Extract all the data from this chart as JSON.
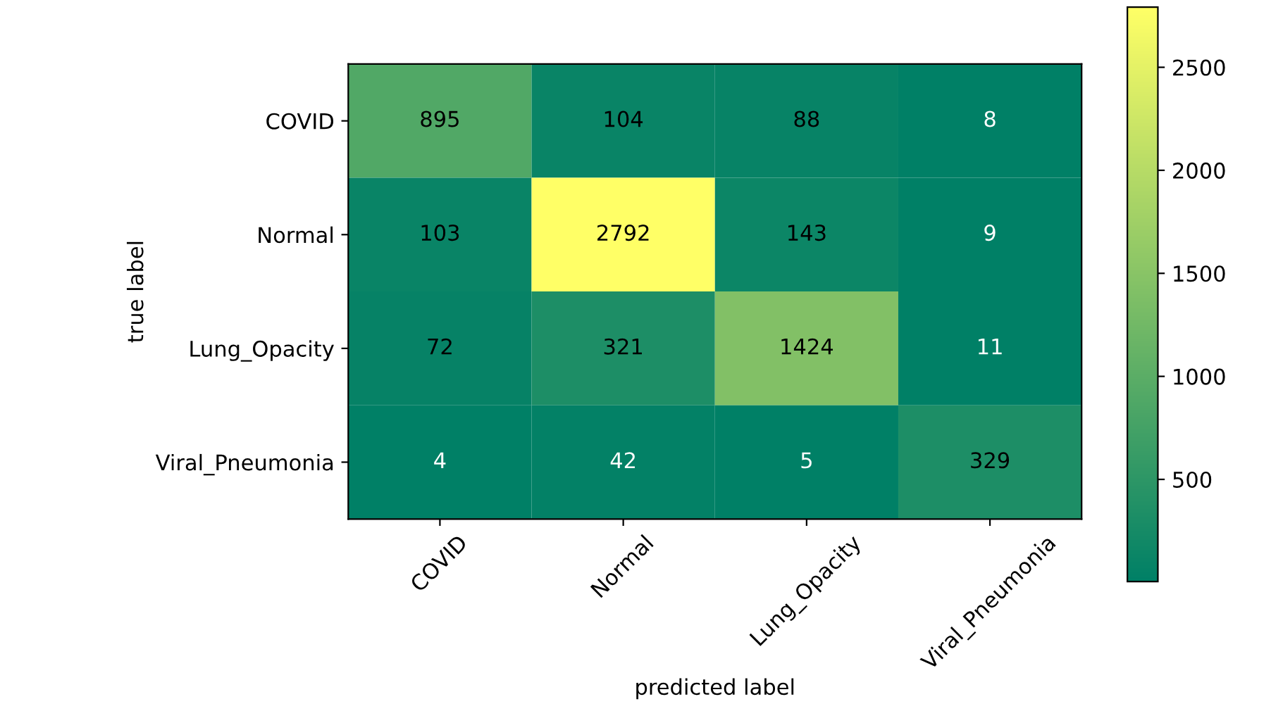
{
  "chart_data": {
    "type": "heatmap",
    "xlabel": "predicted label",
    "ylabel": "true label",
    "categories": [
      "COVID",
      "Normal",
      "Lung_Opacity",
      "Viral_Pneumonia"
    ],
    "y_categories": [
      "COVID",
      "Normal",
      "Lung_Opacity",
      "Viral_Pneumonia"
    ],
    "cells": [
      [
        895,
        104,
        88,
        8
      ],
      [
        103,
        2792,
        143,
        9
      ],
      [
        72,
        321,
        1424,
        11
      ],
      [
        4,
        42,
        5,
        329
      ]
    ],
    "clim": [
      4,
      2792
    ],
    "cticks": [
      500,
      1000,
      1500,
      2000,
      2500
    ],
    "data_labels": true,
    "grid": false
  }
}
